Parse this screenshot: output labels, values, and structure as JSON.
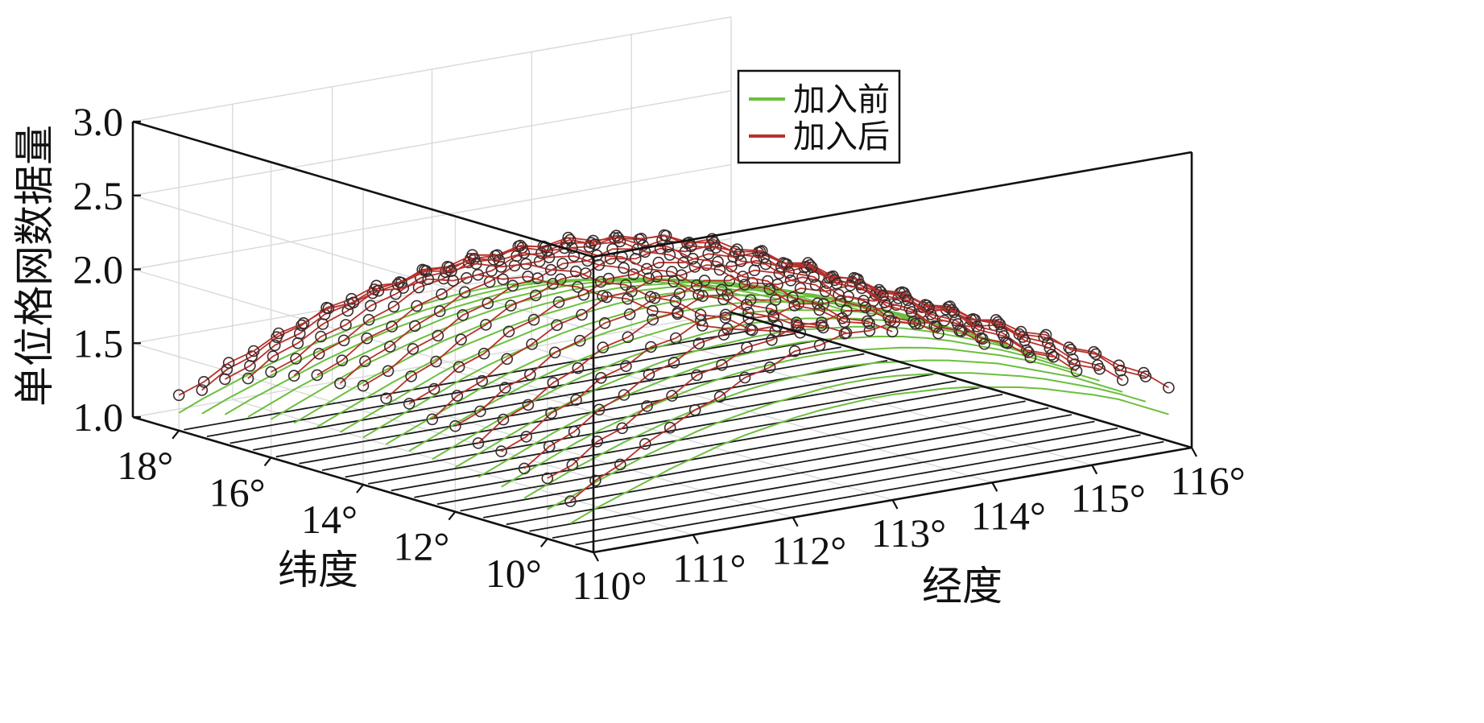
{
  "chart_data": {
    "type": "line3d",
    "xlabel": "经度",
    "ylabel": "纬度",
    "zlabel": "单位格网数据量",
    "x_ticks": [
      "110°",
      "111°",
      "112°",
      "113°",
      "114°",
      "115°",
      "116°"
    ],
    "y_ticks": [
      "10°",
      "12°",
      "14°",
      "16°",
      "18°"
    ],
    "z_ticks": [
      "1.0",
      "1.5",
      "2.0",
      "2.5",
      "3.0"
    ],
    "xlim": [
      110,
      116
    ],
    "ylim": [
      9,
      19
    ],
    "zlim": [
      1.0,
      3.0
    ],
    "grid": true,
    "legend_position": "top-center",
    "series": [
      {
        "name": "加入前",
        "color": "#6cbf3e",
        "marker": "none"
      },
      {
        "name": "加入后",
        "color": "#b8312c",
        "marker": "circle"
      }
    ],
    "latitudes": [
      9.5,
      10.0,
      10.5,
      11.0,
      11.5,
      12.0,
      12.5,
      13.0,
      13.5,
      14.0,
      14.5,
      15.0,
      15.5,
      16.0,
      16.5,
      17.0,
      17.5,
      18.0
    ],
    "longitude_step": 0.25,
    "before_values": [
      [
        1.15,
        1.22,
        1.28,
        1.34,
        1.4,
        1.45,
        1.5,
        1.54,
        1.57,
        1.6,
        1.62,
        1.63,
        1.64,
        1.64,
        1.63,
        1.62,
        1.6,
        1.57,
        1.54,
        1.5,
        1.45,
        1.4,
        1.34,
        1.26,
        1.18
      ],
      [
        1.2,
        1.26,
        1.33,
        1.39,
        1.45,
        1.5,
        1.55,
        1.59,
        1.62,
        1.65,
        1.67,
        1.69,
        1.7,
        1.7,
        1.69,
        1.67,
        1.65,
        1.62,
        1.58,
        1.54,
        1.49,
        1.43,
        1.37,
        1.3,
        1.22
      ],
      [
        1.23,
        1.3,
        1.37,
        1.43,
        1.49,
        1.54,
        1.59,
        1.63,
        1.67,
        1.7,
        1.72,
        1.73,
        1.74,
        1.74,
        1.73,
        1.71,
        1.69,
        1.66,
        1.62,
        1.58,
        1.52,
        1.46,
        1.4,
        1.32,
        1.24
      ],
      [
        1.26,
        1.33,
        1.4,
        1.47,
        1.53,
        1.58,
        1.63,
        1.67,
        1.71,
        1.74,
        1.76,
        1.77,
        1.78,
        1.78,
        1.77,
        1.75,
        1.73,
        1.7,
        1.66,
        1.61,
        1.56,
        1.5,
        1.43,
        1.35,
        1.27
      ],
      [
        1.28,
        1.35,
        1.42,
        1.49,
        1.55,
        1.61,
        1.66,
        1.7,
        1.74,
        1.77,
        1.79,
        1.8,
        1.81,
        1.81,
        1.8,
        1.78,
        1.76,
        1.73,
        1.69,
        1.64,
        1.58,
        1.52,
        1.45,
        1.37,
        1.29
      ],
      [
        1.3,
        1.37,
        1.44,
        1.51,
        1.57,
        1.63,
        1.68,
        1.72,
        1.76,
        1.79,
        1.81,
        1.82,
        1.83,
        1.83,
        1.82,
        1.8,
        1.78,
        1.75,
        1.71,
        1.66,
        1.6,
        1.54,
        1.47,
        1.39,
        1.31
      ],
      [
        1.31,
        1.38,
        1.45,
        1.52,
        1.58,
        1.64,
        1.69,
        1.73,
        1.77,
        1.8,
        1.82,
        1.84,
        1.85,
        1.85,
        1.84,
        1.82,
        1.79,
        1.76,
        1.72,
        1.67,
        1.61,
        1.55,
        1.48,
        1.4,
        1.32
      ],
      [
        1.32,
        1.39,
        1.46,
        1.53,
        1.59,
        1.65,
        1.7,
        1.74,
        1.78,
        1.81,
        1.83,
        1.85,
        1.86,
        1.86,
        1.85,
        1.83,
        1.8,
        1.77,
        1.73,
        1.68,
        1.62,
        1.56,
        1.49,
        1.41,
        1.33
      ],
      [
        1.32,
        1.39,
        1.46,
        1.53,
        1.6,
        1.66,
        1.71,
        1.75,
        1.79,
        1.82,
        1.84,
        1.86,
        1.87,
        1.87,
        1.86,
        1.84,
        1.81,
        1.78,
        1.74,
        1.69,
        1.63,
        1.56,
        1.49,
        1.41,
        1.33
      ],
      [
        1.32,
        1.39,
        1.46,
        1.53,
        1.6,
        1.66,
        1.71,
        1.75,
        1.79,
        1.82,
        1.84,
        1.86,
        1.87,
        1.87,
        1.86,
        1.84,
        1.81,
        1.78,
        1.74,
        1.69,
        1.63,
        1.56,
        1.49,
        1.41,
        1.33
      ],
      [
        1.31,
        1.38,
        1.45,
        1.52,
        1.59,
        1.65,
        1.7,
        1.74,
        1.78,
        1.81,
        1.83,
        1.85,
        1.86,
        1.86,
        1.85,
        1.83,
        1.8,
        1.77,
        1.73,
        1.68,
        1.62,
        1.55,
        1.48,
        1.4,
        1.32
      ],
      [
        1.3,
        1.37,
        1.44,
        1.51,
        1.57,
        1.63,
        1.68,
        1.72,
        1.76,
        1.79,
        1.81,
        1.83,
        1.84,
        1.84,
        1.83,
        1.81,
        1.78,
        1.75,
        1.71,
        1.66,
        1.6,
        1.54,
        1.47,
        1.39,
        1.31
      ],
      [
        1.28,
        1.35,
        1.42,
        1.49,
        1.55,
        1.61,
        1.66,
        1.7,
        1.74,
        1.77,
        1.79,
        1.8,
        1.81,
        1.81,
        1.8,
        1.78,
        1.76,
        1.73,
        1.69,
        1.64,
        1.58,
        1.52,
        1.45,
        1.37,
        1.29
      ],
      [
        1.26,
        1.33,
        1.4,
        1.47,
        1.53,
        1.58,
        1.63,
        1.67,
        1.71,
        1.74,
        1.76,
        1.77,
        1.78,
        1.78,
        1.77,
        1.75,
        1.73,
        1.7,
        1.66,
        1.61,
        1.56,
        1.5,
        1.43,
        1.35,
        1.27
      ],
      [
        1.23,
        1.3,
        1.37,
        1.43,
        1.49,
        1.54,
        1.59,
        1.63,
        1.67,
        1.7,
        1.72,
        1.73,
        1.74,
        1.74,
        1.73,
        1.71,
        1.69,
        1.66,
        1.62,
        1.58,
        1.52,
        1.46,
        1.4,
        1.32,
        1.24
      ],
      [
        1.2,
        1.27,
        1.33,
        1.39,
        1.45,
        1.5,
        1.55,
        1.59,
        1.62,
        1.65,
        1.67,
        1.69,
        1.7,
        1.7,
        1.69,
        1.67,
        1.65,
        1.62,
        1.58,
        1.54,
        1.49,
        1.43,
        1.37,
        1.3,
        1.22
      ],
      [
        1.16,
        1.23,
        1.29,
        1.35,
        1.41,
        1.46,
        1.5,
        1.54,
        1.57,
        1.6,
        1.62,
        1.64,
        1.65,
        1.65,
        1.64,
        1.62,
        1.6,
        1.57,
        1.54,
        1.5,
        1.45,
        1.39,
        1.33,
        1.26,
        1.18
      ],
      [
        1.12,
        1.19,
        1.25,
        1.31,
        1.36,
        1.41,
        1.45,
        1.49,
        1.52,
        1.55,
        1.57,
        1.59,
        1.6,
        1.6,
        1.59,
        1.57,
        1.55,
        1.52,
        1.49,
        1.45,
        1.4,
        1.35,
        1.29,
        1.22,
        1.14
      ]
    ],
    "after_values": [
      [
        1.3,
        1.41,
        1.49,
        1.6,
        1.68,
        1.77,
        1.83,
        1.93,
        1.97,
        2.05,
        2.06,
        2.11,
        2.1,
        2.13,
        2.09,
        2.08,
        2.01,
        1.99,
        1.9,
        1.85,
        1.75,
        1.69,
        1.57,
        1.49,
        1.36
      ],
      [
        1.41,
        1.47,
        1.6,
        1.66,
        1.78,
        1.82,
        1.93,
        1.97,
        2.06,
        2.08,
        2.15,
        2.14,
        2.19,
        2.16,
        2.17,
        2.09,
        2.08,
        1.98,
        1.95,
        1.84,
        1.79,
        1.66,
        1.6,
        1.46,
        1.39
      ],
      [
        1.43,
        1.55,
        1.62,
        1.74,
        1.81,
        1.92,
        1.97,
        2.07,
        2.1,
        2.18,
        2.17,
        2.22,
        2.19,
        2.21,
        2.15,
        2.14,
        2.05,
        2.02,
        1.91,
        1.86,
        1.73,
        1.66,
        1.52,
        1.45,
        1.32
      ],
      [
        1.5,
        1.57,
        1.7,
        1.76,
        1.88,
        1.93,
        2.03,
        2.06,
        2.15,
        2.16,
        2.23,
        2.2,
        2.25,
        2.2,
        2.21,
        2.12,
        2.1,
        1.99,
        1.95,
        1.83,
        1.77,
        1.63,
        1.55,
        1.41,
        1.35
      ],
      [
        1.51,
        1.64,
        1.71,
        1.83,
        1.9,
        2.01,
        2.05,
        2.14,
        2.16,
        2.24,
        2.22,
        2.27,
        2.23,
        2.25,
        2.18,
        2.16,
        2.06,
        2.03,
        1.91,
        1.85,
        1.71,
        1.64,
        1.49,
        1.43,
        1.29
      ],
      [
        1.58,
        1.65,
        1.78,
        1.84,
        1.96,
        2.01,
        2.1,
        2.13,
        2.21,
        2.21,
        2.27,
        2.24,
        2.28,
        2.23,
        2.24,
        2.14,
        2.11,
        2.0,
        1.95,
        1.82,
        1.76,
        1.61,
        1.54,
        1.4,
        1.34
      ],
      [
        1.58,
        1.71,
        1.78,
        1.9,
        1.97,
        2.07,
        2.11,
        2.2,
        2.21,
        2.28,
        2.26,
        2.3,
        2.26,
        2.27,
        2.2,
        2.17,
        2.07,
        2.03,
        1.91,
        1.85,
        1.7,
        1.63,
        1.48,
        1.42,
        1.29
      ],
      [
        1.64,
        1.71,
        1.83,
        1.89,
        2.01,
        2.06,
        2.15,
        2.17,
        2.25,
        2.25,
        2.3,
        2.27,
        2.3,
        2.25,
        2.25,
        2.15,
        2.12,
        2.0,
        1.95,
        1.81,
        1.75,
        1.6,
        1.53,
        1.4,
        1.34
      ],
      [
        1.63,
        1.75,
        1.82,
        1.94,
        2.01,
        2.11,
        2.15,
        2.23,
        2.24,
        2.31,
        2.28,
        2.32,
        2.27,
        2.28,
        2.21,
        2.18,
        2.07,
        2.03,
        1.9,
        1.84,
        1.69,
        1.62,
        1.47,
        1.41,
        1.29
      ],
      [
        1.67,
        1.74,
        1.86,
        1.92,
        2.03,
        2.08,
        2.17,
        2.19,
        2.26,
        2.25,
        2.3,
        2.27,
        2.3,
        2.25,
        2.25,
        2.15,
        2.11,
        1.99,
        1.94,
        1.8,
        1.74,
        1.59,
        1.52,
        1.39,
        1.33
      ],
      [
        1.64,
        1.76,
        1.83,
        1.94,
        2.01,
        2.11,
        2.15,
        2.23,
        2.23,
        2.29,
        2.27,
        2.3,
        2.26,
        2.26,
        2.18,
        2.15,
        2.04,
        1.99,
        1.86,
        1.8,
        1.65,
        1.58,
        1.44,
        1.38,
        1.27
      ],
      [
        1.65,
        1.72,
        1.84,
        1.89,
        2.0,
        2.05,
        2.13,
        2.15,
        2.22,
        2.21,
        2.25,
        2.22,
        2.24,
        2.19,
        2.18,
        2.08,
        2.04,
        1.92,
        1.87,
        1.73,
        1.67,
        1.53,
        1.46,
        1.34,
        1.29
      ],
      [
        1.6,
        1.72,
        1.78,
        1.89,
        1.95,
        2.05,
        2.08,
        2.16,
        2.15,
        2.21,
        2.18,
        2.21,
        2.16,
        2.15,
        2.07,
        2.03,
        1.92,
        1.87,
        1.74,
        1.68,
        1.54,
        1.47,
        1.34,
        1.29,
        1.19
      ],
      [
        1.58,
        1.64,
        1.76,
        1.81,
        1.91,
        1.96,
        2.04,
        2.05,
        2.11,
        2.1,
        2.14,
        2.1,
        2.12,
        2.06,
        2.05,
        1.95,
        1.9,
        1.79,
        1.74,
        1.61,
        1.55,
        1.41,
        1.35,
        1.24,
        1.2
      ],
      [
        1.49,
        1.61,
        1.67,
        1.77,
        1.83,
        1.92,
        1.95,
        2.02,
        2.01,
        2.06,
        2.03,
        2.05,
        2.0,
        1.99,
        1.91,
        1.87,
        1.76,
        1.71,
        1.59,
        1.53,
        1.4,
        1.34,
        1.22,
        1.17,
        1.09
      ],
      [
        1.44,
        1.5,
        1.61,
        1.66,
        1.76,
        1.8,
        1.87,
        1.89,
        1.94,
        1.93,
        1.96,
        1.92,
        1.94,
        1.88,
        1.86,
        1.77,
        1.72,
        1.62,
        1.57,
        1.45,
        1.39,
        1.27,
        1.21,
        1.12,
        1.08
      ],
      [
        1.32,
        1.43,
        1.49,
        1.59,
        1.64,
        1.73,
        1.76,
        1.82,
        1.81,
        1.86,
        1.83,
        1.85,
        1.8,
        1.79,
        1.72,
        1.68,
        1.58,
        1.53,
        1.42,
        1.36,
        1.24,
        1.19,
        1.08,
        1.04,
        1.0
      ],
      [
        1.24,
        1.3,
        1.4,
        1.45,
        1.54,
        1.58,
        1.65,
        1.66,
        1.71,
        1.7,
        1.73,
        1.69,
        1.7,
        1.64,
        1.63,
        1.55,
        1.5,
        1.41,
        1.36,
        1.25,
        1.2,
        1.09,
        1.04,
        1.0,
        1.0
      ]
    ]
  }
}
